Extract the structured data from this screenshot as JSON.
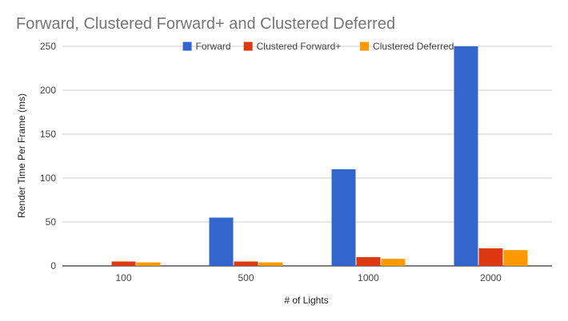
{
  "chart_data": {
    "type": "bar",
    "title": "Forward, Clustered Forward+ and Clustered Deferred",
    "xlabel": "# of Lights",
    "ylabel": "Render Time Per Frame (ms)",
    "categories": [
      "100",
      "500",
      "1000",
      "2000"
    ],
    "ylim": [
      0,
      250
    ],
    "yticks": [
      0,
      50,
      100,
      150,
      200,
      250
    ],
    "grid": true,
    "legend_position": "top",
    "series": [
      {
        "name": "Forward",
        "color": "#3366cc",
        "values": [
          0,
          55,
          110,
          250
        ]
      },
      {
        "name": "Clustered Forward+",
        "color": "#dc3912",
        "values": [
          5,
          5,
          10,
          20
        ]
      },
      {
        "name": "Clustered Deferred",
        "color": "#ff9900",
        "values": [
          4,
          4,
          8,
          18
        ]
      }
    ]
  }
}
